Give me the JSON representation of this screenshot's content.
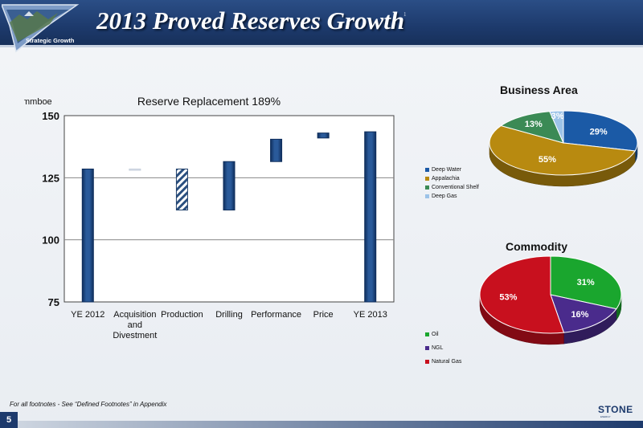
{
  "header": {
    "title": "2013 Proved Reserves Growth",
    "title_superscript": "1",
    "section_label": "Strategic Growth"
  },
  "footnote": "For all footnotes - See “Defined Footnotes” in Appendix",
  "page_number": "5",
  "company_logo_text": "STONE",
  "company_logo_subtext": "ENERGY",
  "colors": {
    "header_blue": "#1d3a6c",
    "bar_blue": "#1f4c8a",
    "deep_water": "#1b5aa6",
    "appalachia": "#b88a10",
    "conventional_shelf": "#3b8a55",
    "deep_gas": "#9cc3e8",
    "oil": "#1aa62e",
    "ngl": "#4a2b8c",
    "natural_gas": "#c8101e"
  },
  "chart_data": [
    {
      "type": "bar",
      "subtype": "waterfall",
      "title": "Reserve Replacement 189%",
      "ylabel": "mmboe",
      "ylim": [
        75,
        150
      ],
      "yticks": [
        75,
        100,
        125,
        150
      ],
      "categories": [
        "YE 2012",
        "Acquisition and Divestment",
        "Production",
        "Drilling",
        "Performance",
        "Price",
        "YE 2013"
      ],
      "category_lines": [
        [
          "YE 2012"
        ],
        [
          "Acquisition",
          "and",
          "Divestment"
        ],
        [
          "Production"
        ],
        [
          "Drilling"
        ],
        [
          "Performance"
        ],
        [
          "Price"
        ],
        [
          "YE 2013"
        ]
      ],
      "bars": [
        {
          "category": "YE 2012",
          "start": 75,
          "end": 128.5,
          "kind": "total"
        },
        {
          "category": "Acquisition and Divestment",
          "start": 128.5,
          "end": 128.0,
          "kind": "decrease"
        },
        {
          "category": "Production",
          "start": 128.5,
          "end": 112,
          "kind": "decrease"
        },
        {
          "category": "Drilling",
          "start": 112,
          "end": 131.5,
          "kind": "increase"
        },
        {
          "category": "Performance",
          "start": 131.5,
          "end": 140.5,
          "kind": "increase"
        },
        {
          "category": "Price",
          "start": 141,
          "end": 143,
          "kind": "increase"
        },
        {
          "category": "YE 2013",
          "start": 75,
          "end": 143.5,
          "kind": "total"
        }
      ],
      "grid": true
    },
    {
      "type": "pie",
      "title": "Business Area",
      "labels": [
        "Deep Water",
        "Appalachia",
        "Conventional Shelf",
        "Deep Gas"
      ],
      "values": [
        29,
        55,
        13,
        3
      ],
      "value_labels": [
        "29%",
        "55%",
        "13%",
        "3%"
      ],
      "legend_placement": "bottom-left"
    },
    {
      "type": "pie",
      "title": "Commodity",
      "labels": [
        "Oil",
        "NGL",
        "Natural Gas"
      ],
      "values": [
        31,
        16,
        53
      ],
      "value_labels": [
        "31%",
        "16%",
        "53%"
      ],
      "legend_placement": "bottom-left"
    }
  ]
}
